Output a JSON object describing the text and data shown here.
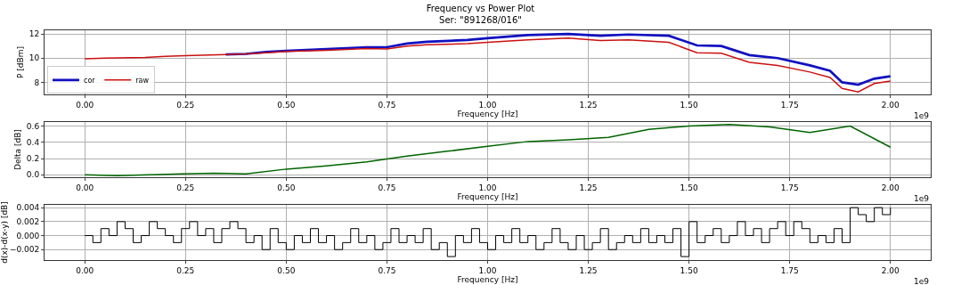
{
  "chart_data": [
    {
      "type": "line",
      "title": "Frequency vs Power Plot",
      "subtitle": "Ser: \"891268/016\"",
      "xlabel": "Frequency [Hz]",
      "ylabel": "P [dBm]",
      "annotations": [
        "1e9"
      ],
      "x": [
        0,
        0.05,
        0.15,
        0.2,
        0.25,
        0.35,
        0.4,
        0.45,
        0.5,
        0.6,
        0.7,
        0.75,
        0.8,
        0.85,
        0.95,
        1.0,
        1.1,
        1.2,
        1.28,
        1.35,
        1.45,
        1.52,
        1.58,
        1.65,
        1.72,
        1.8,
        1.85,
        1.88,
        1.92,
        1.96,
        2.0
      ],
      "series": [
        {
          "name": "cor",
          "color": "#1010c0",
          "values": [
            null,
            null,
            null,
            null,
            null,
            10.3,
            10.35,
            10.5,
            10.6,
            10.75,
            10.9,
            10.9,
            11.2,
            11.35,
            11.5,
            11.65,
            11.9,
            12.0,
            11.85,
            11.95,
            11.85,
            11.05,
            11.0,
            10.25,
            10.0,
            9.4,
            8.95,
            8.0,
            7.8,
            8.3,
            8.5
          ]
        },
        {
          "name": "raw",
          "color": "#cc1010",
          "values": [
            9.95,
            10.0,
            10.05,
            10.15,
            10.2,
            10.3,
            10.35,
            10.45,
            10.55,
            10.65,
            10.8,
            10.75,
            11.0,
            11.1,
            11.2,
            11.3,
            11.5,
            11.65,
            11.45,
            11.5,
            11.3,
            10.45,
            10.4,
            9.65,
            9.4,
            8.85,
            8.4,
            7.5,
            7.2,
            7.9,
            8.1
          ]
        }
      ],
      "xlim": [
        -0.1,
        2.1
      ],
      "ylim": [
        7,
        12.3
      ],
      "xticks": [
        {
          "value": 0,
          "label": "0.00"
        },
        {
          "value": 0.25,
          "label": "0.25"
        },
        {
          "value": 0.5,
          "label": "0.50"
        },
        {
          "value": 0.75,
          "label": "0.75"
        },
        {
          "value": 1,
          "label": "1.00"
        },
        {
          "value": 1.25,
          "label": "1.25"
        },
        {
          "value": 1.5,
          "label": "1.50"
        },
        {
          "value": 1.75,
          "label": "1.75"
        },
        {
          "value": 2,
          "label": "2.00"
        }
      ],
      "yticks": [
        8,
        10,
        12
      ],
      "grid": true,
      "legend": "bottom left"
    },
    {
      "type": "line",
      "xlabel": "Frequency [Hz]",
      "ylabel": "Delta [dB]",
      "annotations": [
        "1e9"
      ],
      "x": [
        0,
        0.08,
        0.16,
        0.24,
        0.32,
        0.4,
        0.5,
        0.6,
        0.7,
        0.8,
        0.9,
        1.0,
        1.1,
        1.2,
        1.3,
        1.4,
        1.5,
        1.6,
        1.7,
        1.8,
        1.9,
        2.0
      ],
      "series": [
        {
          "color": "#006400",
          "values": [
            0,
            -0.01,
            0,
            0.01,
            0.02,
            0.01,
            0.07,
            0.11,
            0.16,
            0.23,
            0.29,
            0.35,
            0.41,
            0.43,
            0.46,
            0.56,
            0.6,
            0.62,
            0.59,
            0.52,
            0.6,
            0.34
          ]
        }
      ],
      "xlim": [
        -0.1,
        2.1
      ],
      "ylim": [
        -0.03,
        0.65
      ],
      "xticks": [
        {
          "value": 0,
          "label": "0.00"
        },
        {
          "value": 0.25,
          "label": "0.25"
        },
        {
          "value": 0.5,
          "label": "0.50"
        },
        {
          "value": 0.75,
          "label": "0.75"
        },
        {
          "value": 1,
          "label": "1.00"
        },
        {
          "value": 1.25,
          "label": "1.25"
        },
        {
          "value": 1.5,
          "label": "1.50"
        },
        {
          "value": 1.75,
          "label": "1.75"
        },
        {
          "value": 2,
          "label": "2.00"
        }
      ],
      "yticks": [
        {
          "value": 0,
          "label": "0.0"
        },
        {
          "value": 0.2,
          "label": "0.2"
        },
        {
          "value": 0.4,
          "label": "0.4"
        },
        {
          "value": 0.6,
          "label": "0.6"
        }
      ],
      "grid": true
    },
    {
      "type": "step",
      "xlabel": "Frequency [Hz]",
      "ylabel": "d(x)-d(x-y) [dB]",
      "annotations": [
        "1e9"
      ],
      "x": [
        0,
        0.02,
        0.04,
        0.06,
        0.08,
        0.1,
        0.12,
        0.14,
        0.16,
        0.18,
        0.2,
        0.22,
        0.24,
        0.26,
        0.28,
        0.3,
        0.32,
        0.34,
        0.36,
        0.38,
        0.4,
        0.42,
        0.44,
        0.46,
        0.48,
        0.5,
        0.52,
        0.54,
        0.56,
        0.58,
        0.6,
        0.62,
        0.64,
        0.66,
        0.68,
        0.7,
        0.72,
        0.74,
        0.76,
        0.78,
        0.8,
        0.82,
        0.84,
        0.86,
        0.88,
        0.9,
        0.92,
        0.94,
        0.96,
        0.98,
        1.0,
        1.02,
        1.04,
        1.06,
        1.08,
        1.1,
        1.12,
        1.14,
        1.16,
        1.18,
        1.2,
        1.22,
        1.24,
        1.26,
        1.28,
        1.3,
        1.32,
        1.34,
        1.36,
        1.38,
        1.4,
        1.42,
        1.44,
        1.46,
        1.48,
        1.5,
        1.52,
        1.54,
        1.56,
        1.58,
        1.6,
        1.62,
        1.64,
        1.66,
        1.68,
        1.7,
        1.72,
        1.74,
        1.76,
        1.78,
        1.8,
        1.82,
        1.84,
        1.86,
        1.88,
        1.9,
        1.92,
        1.94,
        1.96,
        1.98,
        2.0
      ],
      "series": [
        {
          "color": "#000000",
          "values": [
            0,
            -0.001,
            0.001,
            0,
            0.002,
            0.001,
            -0.001,
            0,
            0.002,
            0.001,
            0,
            -0.001,
            0.001,
            0.002,
            0,
            0.001,
            -0.001,
            0.001,
            0.002,
            0.001,
            -0.001,
            0,
            -0.002,
            0.001,
            -0.001,
            -0.002,
            0,
            -0.001,
            0.001,
            -0.001,
            0,
            -0.002,
            -0.001,
            0.001,
            -0.001,
            0,
            -0.002,
            -0.001,
            0.001,
            -0.001,
            0,
            -0.001,
            0.001,
            -0.002,
            -0.001,
            -0.003,
            0,
            -0.001,
            0.001,
            -0.001,
            -0.002,
            0,
            -0.001,
            0.001,
            -0.001,
            0,
            -0.002,
            -0.001,
            0.001,
            -0.001,
            -0.002,
            0,
            -0.002,
            -0.001,
            0.001,
            -0.002,
            -0.001,
            0,
            -0.001,
            0.001,
            -0.001,
            0,
            -0.001,
            0.001,
            -0.003,
            0.002,
            -0.001,
            0,
            0.001,
            -0.001,
            0,
            0.002,
            0,
            0.001,
            -0.001,
            0.001,
            0.002,
            0,
            0.002,
            0.001,
            -0.001,
            0,
            -0.001,
            0.001,
            -0.001,
            0.004,
            0.003,
            0.002,
            0.004,
            0.003,
            0.004
          ]
        }
      ],
      "xlim": [
        -0.1,
        2.1
      ],
      "ylim": [
        -0.0035,
        0.0044
      ],
      "xticks": [
        {
          "value": 0,
          "label": "0.00"
        },
        {
          "value": 0.25,
          "label": "0.25"
        },
        {
          "value": 0.5,
          "label": "0.50"
        },
        {
          "value": 0.75,
          "label": "0.75"
        },
        {
          "value": 1,
          "label": "1.00"
        },
        {
          "value": 1.25,
          "label": "1.25"
        },
        {
          "value": 1.5,
          "label": "1.50"
        },
        {
          "value": 1.75,
          "label": "1.75"
        },
        {
          "value": 2,
          "label": "2.00"
        }
      ],
      "yticks": [
        {
          "value": -0.002,
          "label": "−0.002"
        },
        {
          "value": 0,
          "label": "0.000"
        },
        {
          "value": 0.002,
          "label": "0.002"
        },
        {
          "value": 0.004,
          "label": "0.004"
        }
      ],
      "grid": true
    }
  ]
}
